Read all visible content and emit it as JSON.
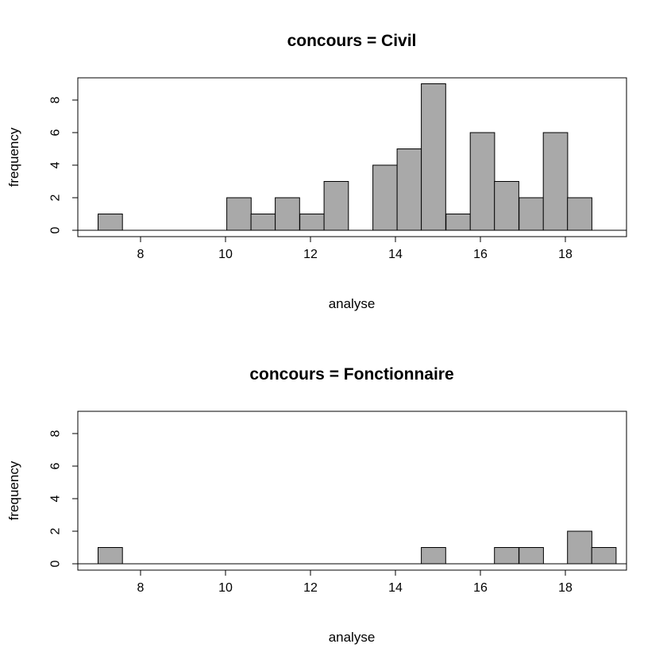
{
  "chart_data": [
    {
      "type": "bar",
      "title": "concours = Civil",
      "xlabel": "analyse",
      "ylabel": "frequency",
      "xlim": [
        6.5,
        19.5
      ],
      "ylim": [
        0,
        9
      ],
      "xticks": [
        8,
        10,
        12,
        14,
        16,
        18
      ],
      "yticks": [
        0,
        2,
        4,
        6,
        8
      ],
      "bin_width": 0.573,
      "bins": [
        {
          "x0": 7.0,
          "count": 1
        },
        {
          "x0": 10.03,
          "count": 2
        },
        {
          "x0": 10.6,
          "count": 1
        },
        {
          "x0": 11.17,
          "count": 2
        },
        {
          "x0": 11.75,
          "count": 1
        },
        {
          "x0": 12.32,
          "count": 3
        },
        {
          "x0": 13.47,
          "count": 4
        },
        {
          "x0": 14.04,
          "count": 5
        },
        {
          "x0": 14.61,
          "count": 9
        },
        {
          "x0": 15.19,
          "count": 1
        },
        {
          "x0": 15.76,
          "count": 6
        },
        {
          "x0": 16.33,
          "count": 3
        },
        {
          "x0": 16.91,
          "count": 2
        },
        {
          "x0": 17.48,
          "count": 6
        },
        {
          "x0": 18.05,
          "count": 2
        }
      ]
    },
    {
      "type": "bar",
      "title": "concours = Fonctionnaire",
      "xlabel": "analyse",
      "ylabel": "frequency",
      "xlim": [
        6.5,
        19.5
      ],
      "ylim": [
        0,
        9
      ],
      "xticks": [
        8,
        10,
        12,
        14,
        16,
        18
      ],
      "yticks": [
        0,
        2,
        4,
        6,
        8
      ],
      "bin_width": 0.573,
      "bins": [
        {
          "x0": 7.0,
          "count": 1
        },
        {
          "x0": 14.61,
          "count": 1
        },
        {
          "x0": 16.33,
          "count": 1
        },
        {
          "x0": 16.91,
          "count": 1
        },
        {
          "x0": 18.05,
          "count": 2
        },
        {
          "x0": 18.62,
          "count": 1
        }
      ]
    }
  ]
}
